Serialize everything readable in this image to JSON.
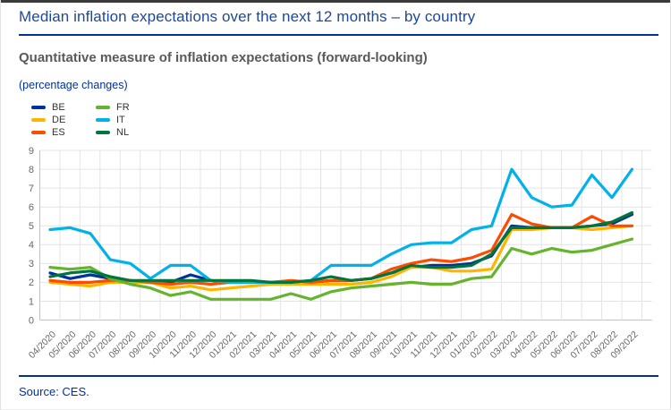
{
  "page": {
    "title": "Median inflation expectations over the next 12 months – by country",
    "subtitle": "Quantitative measure of inflation expectations (forward-looking)",
    "unit_label": "(percentage changes)",
    "source": "Source: CES.",
    "colors": {
      "title_blue": "#1e4898",
      "rule_blue": "#003299",
      "subtitle_gray": "#58595b",
      "unit_blue": "#003299",
      "source_blue": "#003299",
      "axis_text": "#666666",
      "grid_line": "#e4e4e4",
      "axis_line": "#c2c2c2"
    }
  },
  "chart_data": {
    "type": "line",
    "title": "Median inflation expectations over the next 12 months – by country",
    "subtitle": "Quantitative measure of inflation expectations (forward-looking)",
    "ylabel": "(percentage changes)",
    "xlabel": "",
    "ylim": [
      0,
      9
    ],
    "yticks": [
      0,
      1,
      2,
      3,
      4,
      5,
      6,
      7,
      8,
      9
    ],
    "grid": true,
    "legend_position": "top-left",
    "legend_display_order": [
      "BE",
      "FR",
      "DE",
      "IT",
      "ES",
      "NL"
    ],
    "categories": [
      "04/2020",
      "05/2020",
      "06/2020",
      "07/2020",
      "08/2020",
      "09/2020",
      "10/2020",
      "11/2020",
      "12/2020",
      "01/2021",
      "02/2021",
      "03/2021",
      "04/2021",
      "05/2021",
      "06/2021",
      "07/2021",
      "08/2021",
      "09/2021",
      "10/2021",
      "11/2021",
      "12/2021",
      "01/2022",
      "02/2022",
      "03/2022",
      "04/2022",
      "05/2022",
      "06/2022",
      "07/2022",
      "08/2022",
      "09/2022"
    ],
    "series": [
      {
        "name": "BE",
        "color": "#003299",
        "values": [
          2.5,
          2.2,
          2.4,
          2.2,
          2.1,
          2.0,
          2.0,
          2.4,
          2.1,
          2.0,
          2.0,
          2.0,
          2.0,
          2.0,
          2.1,
          2.1,
          2.2,
          2.5,
          2.8,
          2.9,
          2.9,
          3.0,
          3.4,
          5.0,
          4.9,
          4.9,
          4.9,
          5.0,
          5.1,
          5.6
        ]
      },
      {
        "name": "DE",
        "color": "#ffb400",
        "values": [
          2.0,
          1.9,
          1.8,
          2.0,
          2.0,
          2.0,
          1.7,
          1.8,
          1.6,
          1.7,
          1.8,
          1.9,
          1.9,
          1.9,
          1.9,
          1.9,
          2.0,
          2.3,
          2.8,
          2.8,
          2.6,
          2.6,
          2.7,
          4.8,
          4.8,
          4.9,
          4.9,
          4.8,
          4.9,
          5.0
        ]
      },
      {
        "name": "ES",
        "color": "#ff4b00",
        "values": [
          2.1,
          2.0,
          2.0,
          2.1,
          2.1,
          2.0,
          1.9,
          2.0,
          1.9,
          2.0,
          2.0,
          2.0,
          2.1,
          2.0,
          2.1,
          2.1,
          2.2,
          2.7,
          3.0,
          3.2,
          3.1,
          3.3,
          3.7,
          5.6,
          5.1,
          4.9,
          4.9,
          5.5,
          5.0,
          5.0
        ]
      },
      {
        "name": "FR",
        "color": "#65b32e",
        "values": [
          2.8,
          2.7,
          2.8,
          2.2,
          1.9,
          1.7,
          1.3,
          1.5,
          1.1,
          1.1,
          1.1,
          1.1,
          1.4,
          1.1,
          1.5,
          1.7,
          1.8,
          1.9,
          2.0,
          1.9,
          1.9,
          2.2,
          2.3,
          3.8,
          3.5,
          3.8,
          3.6,
          3.7,
          4.0,
          4.3
        ]
      },
      {
        "name": "IT",
        "color": "#00b1ea",
        "values": [
          4.8,
          4.9,
          4.6,
          3.2,
          3.0,
          2.2,
          2.9,
          2.9,
          2.1,
          2.0,
          2.0,
          2.0,
          2.0,
          2.1,
          2.9,
          2.9,
          2.9,
          3.5,
          4.0,
          4.1,
          4.1,
          4.8,
          5.0,
          8.0,
          6.5,
          6.0,
          6.1,
          7.7,
          6.5,
          8.0
        ]
      },
      {
        "name": "NL",
        "color": "#00753c",
        "values": [
          2.3,
          2.5,
          2.6,
          2.3,
          2.1,
          2.1,
          2.1,
          2.1,
          2.1,
          2.1,
          2.1,
          2.0,
          2.0,
          2.1,
          2.3,
          2.1,
          2.2,
          2.5,
          2.9,
          2.8,
          2.8,
          2.9,
          3.5,
          4.9,
          4.9,
          4.9,
          4.9,
          5.0,
          5.2,
          5.7
        ]
      }
    ]
  }
}
